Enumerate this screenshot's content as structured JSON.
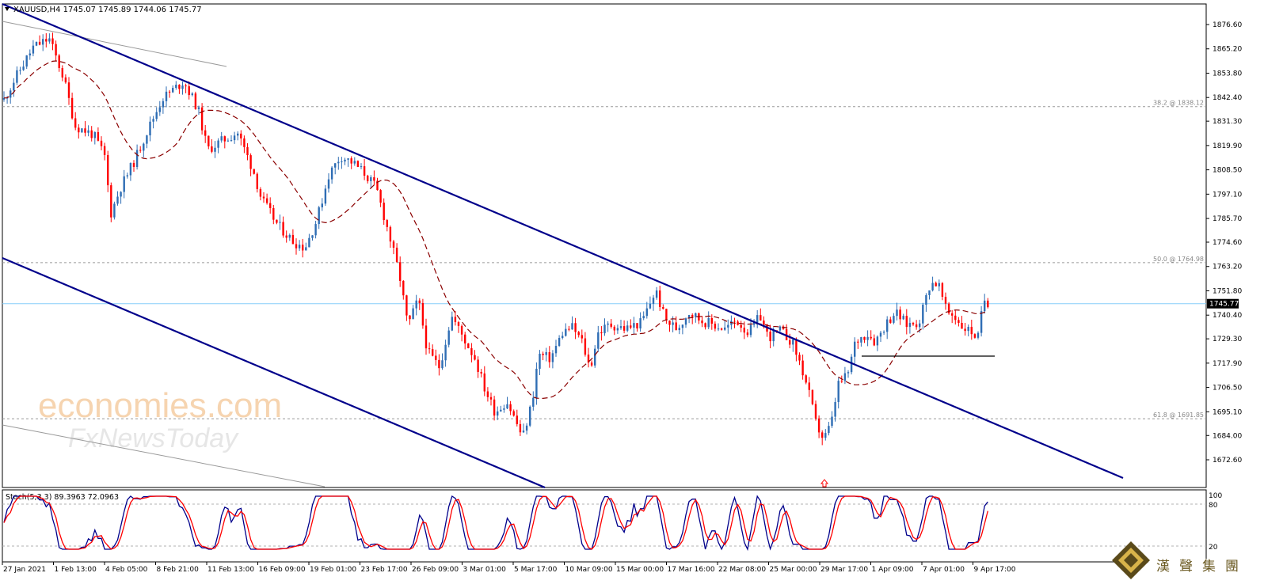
{
  "chart_header": {
    "symbol_line": "XAUUSD,H4  1745.07 1745.89 1744.06 1745.77"
  },
  "stoch_header": {
    "text": "Stoch(5,3,3) 89.3963 72.0963"
  },
  "price_axis": {
    "ticks": [
      "1876.60",
      "1865.20",
      "1853.80",
      "1842.40",
      "1831.30",
      "1819.90",
      "1808.50",
      "1797.10",
      "1785.70",
      "1774.60",
      "1763.20",
      "1751.80",
      "1740.40",
      "1729.30",
      "1717.90",
      "1706.50",
      "1695.10",
      "1684.00",
      "1672.60"
    ],
    "current_price_label": "1745.77"
  },
  "fib_levels": [
    {
      "label": "38.2 @ 1838.12",
      "price": 1838.12
    },
    {
      "label": "50.0 @ 1764.98",
      "price": 1764.98
    },
    {
      "label": "61.8 @ 1691.85",
      "price": 1691.85
    }
  ],
  "stoch_axis": {
    "ticks": [
      "100",
      "80",
      "20"
    ]
  },
  "time_axis": {
    "labels": [
      "27 Jan 2021",
      "1 Feb 13:00",
      "4 Feb 05:00",
      "8 Feb 21:00",
      "11 Feb 13:00",
      "16 Feb 09:00",
      "19 Feb 01:00",
      "23 Feb 17:00",
      "26 Feb 09:00",
      "3 Mar 01:00",
      "5 Mar 17:00",
      "10 Mar 09:00",
      "15 Mar 00:00",
      "17 Mar 16:00",
      "22 Mar 08:00",
      "25 Mar 00:00",
      "29 Mar 17:00",
      "1 Apr 09:00",
      "7 Apr 01:00",
      "9 Apr 17:00"
    ]
  },
  "watermark": {
    "line1": "economies.com",
    "line2": "FxNewsToday"
  },
  "brand": {
    "name": "漢聲集團"
  },
  "colors": {
    "bull": "#2e6db4",
    "bear": "#ff0000",
    "channel": "#00008b",
    "ma": "#8b0000",
    "stoch_main": "#00008b",
    "stoch_signal": "#ff0000"
  },
  "icons": {
    "collapse": "triangle-down-icon",
    "signal_arrow": "up-arrow-icon",
    "logo": "diamond-logo-icon"
  },
  "chart_data": {
    "type": "candlestick",
    "instrument": "XAUUSD",
    "timeframe": "H4",
    "last_bar": {
      "open": 1745.07,
      "high": 1745.89,
      "low": 1744.06,
      "close": 1745.77
    },
    "ylim": [
      1668,
      1882
    ],
    "current_price": 1745.77,
    "support_line_price": 1731,
    "stoch_values": {
      "main": 89.3963,
      "signal": 72.0963
    }
  }
}
